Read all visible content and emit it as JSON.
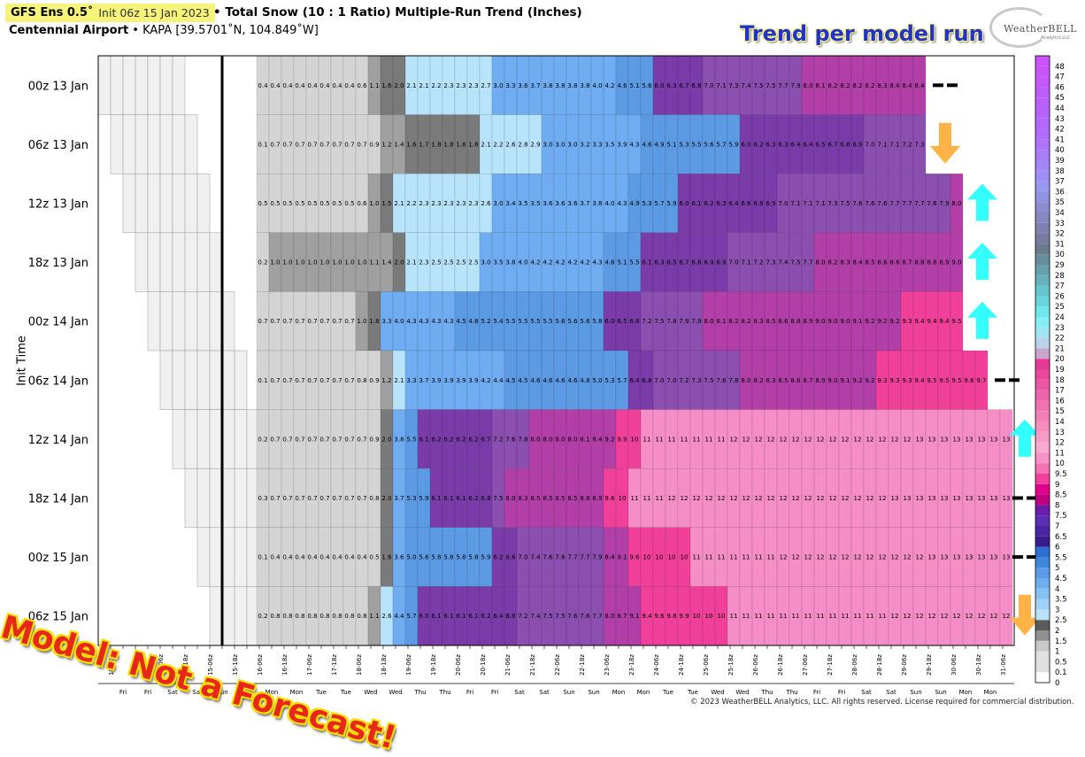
{
  "header": {
    "model": "GFS Ens 0.5˚",
    "init": "Init 06z 15 Jan 2023",
    "title": "• Total Snow (10 : 1 Ratio) Multiple-Run Trend (Inches)",
    "station": "Centennial Airport",
    "station_info": "• KAPA [39.5701˚N, 104.849˚W]",
    "trend_label": "Trend per model run",
    "logo_text": "WeatherBELL",
    "logo_sub": "Analytics LLC"
  },
  "overlay": {
    "stamp": "Model: Not a Forecast!",
    "copyright": "© 2023 WeatherBELL Analytics, LLC. All rights reserved. License required for commercial distribution."
  },
  "chart_data": {
    "type": "heatmap",
    "ylabel": "Init Time",
    "runs": [
      {
        "label": "00z 13 Jan",
        "lead_blank": 6,
        "trend": "flat",
        "values": [
          "0.4",
          "0.4",
          "0.4",
          "0.4",
          "0.4",
          "0.4",
          "0.4",
          "0.4",
          "0.6",
          "1.1",
          "1.6",
          "2.0",
          "2.1",
          "2.1",
          "2.2",
          "2.3",
          "2.3",
          "2.3",
          "2.7",
          "3.0",
          "3.3",
          "3.6",
          "3.7",
          "3.8",
          "3.8",
          "3.8",
          "3.8",
          "4.0",
          "4.2",
          "4.6",
          "5.1",
          "5.6",
          "6.0",
          "6.3",
          "6.7",
          "6.8",
          "7.0",
          "7.1",
          "7.3",
          "7.4",
          "7.5",
          "7.5",
          "7.7",
          "7.9",
          "8.0",
          "8.1",
          "8.2",
          "8.2",
          "8.2",
          "8.2",
          "8.3",
          "8.4",
          "8.4",
          "8.4"
        ]
      },
      {
        "label": "06z 13 Jan",
        "lead_blank": 6,
        "trend": "down",
        "values": [
          "0.1",
          "0.7",
          "0.7",
          "0.7",
          "0.7",
          "0.7",
          "0.7",
          "0.7",
          "0.7",
          "0.9",
          "1.2",
          "1.4",
          "1.6",
          "1.7",
          "1.8",
          "1.8",
          "1.8",
          "1.8",
          "2.1",
          "2.2",
          "2.6",
          "2.8",
          "2.9",
          "3.0",
          "3.0",
          "3.0",
          "3.2",
          "3.3",
          "3.5",
          "3.9",
          "4.3",
          "4.6",
          "4.9",
          "5.1",
          "5.3",
          "5.5",
          "5.6",
          "5.7",
          "5.9",
          "6.0",
          "6.2",
          "6.3",
          "6.3",
          "6.4",
          "6.4",
          "6.5",
          "6.7",
          "6.8",
          "6.9",
          "7.0",
          "7.1",
          "7.1",
          "7.2",
          "7.3"
        ]
      },
      {
        "label": "12z 13 Jan",
        "lead_blank": 7,
        "trend": "up",
        "values": [
          "0.5",
          "0.5",
          "0.5",
          "0.5",
          "0.5",
          "0.5",
          "0.5",
          "0.5",
          "0.6",
          "1.0",
          "1.5",
          "2.1",
          "2.2",
          "2.3",
          "2.3",
          "2.3",
          "2.3",
          "2.3",
          "2.6",
          "3.0",
          "3.4",
          "3.5",
          "3.5",
          "3.6",
          "3.6",
          "3.6",
          "3.7",
          "3.8",
          "4.0",
          "4.3",
          "4.9",
          "5.3",
          "5.7",
          "5.9",
          "6.0",
          "6.1",
          "6.2",
          "6.3",
          "6.4",
          "6.6",
          "6.8",
          "6.9",
          "7.0",
          "7.1",
          "7.1",
          "7.1",
          "7.3",
          "7.5",
          "7.6",
          "7.6",
          "7.6",
          "7.7",
          "7.7",
          "7.7",
          "7.8",
          "7.9",
          "8.0"
        ]
      },
      {
        "label": "18z 13 Jan",
        "lead_blank": 6,
        "trend": "up",
        "values": [
          "0.2",
          "1.0",
          "1.0",
          "1.0",
          "1.0",
          "1.0",
          "1.0",
          "1.0",
          "1.0",
          "1.1",
          "1.4",
          "2.0",
          "2.1",
          "2.3",
          "2.5",
          "2.5",
          "2.5",
          "2.5",
          "3.0",
          "3.5",
          "3.8",
          "4.0",
          "4.2",
          "4.2",
          "4.2",
          "4.2",
          "4.2",
          "4.3",
          "4.6",
          "5.1",
          "5.5",
          "6.1",
          "6.3",
          "6.5",
          "6.7",
          "6.8",
          "6.9",
          "6.9",
          "7.0",
          "7.1",
          "7.2",
          "7.3",
          "7.4",
          "7.5",
          "7.7",
          "8.0",
          "8.2",
          "8.3",
          "8.4",
          "8.5",
          "8.6",
          "8.6",
          "8.7",
          "8.8",
          "8.8",
          "8.9",
          "9.0"
        ]
      },
      {
        "label": "00z 14 Jan",
        "lead_blank": 6,
        "trend": "up",
        "values": [
          "0.7",
          "0.7",
          "0.7",
          "0.7",
          "0.7",
          "0.7",
          "0.7",
          "0.7",
          "1.0",
          "1.8",
          "3.3",
          "4.0",
          "4.3",
          "4.3",
          "4.3",
          "4.3",
          "4.5",
          "4.8",
          "5.2",
          "5.4",
          "5.5",
          "5.5",
          "5.5",
          "5.5",
          "5.6",
          "5.6",
          "5.6",
          "5.8",
          "6.0",
          "6.5",
          "6.8",
          "7.2",
          "7.5",
          "7.8",
          "7.9",
          "7.9",
          "8.0",
          "8.1",
          "8.2",
          "8.2",
          "8.3",
          "8.5",
          "8.6",
          "8.8",
          "8.9",
          "9.0",
          "9.0",
          "9.0",
          "9.1",
          "9.2",
          "9.2",
          "9.2",
          "9.3",
          "9.4",
          "9.4",
          "9.4",
          "9.5"
        ]
      },
      {
        "label": "06z 14 Jan",
        "lead_blank": 6,
        "trend": "flat",
        "values": [
          "0.1",
          "0.7",
          "0.7",
          "0.7",
          "0.7",
          "0.7",
          "0.7",
          "0.7",
          "0.8",
          "0.9",
          "1.2",
          "2.1",
          "3.3",
          "3.7",
          "3.9",
          "3.9",
          "3.9",
          "3.9",
          "4.2",
          "4.4",
          "4.5",
          "4.5",
          "4.6",
          "4.6",
          "4.6",
          "4.6",
          "4.8",
          "5.0",
          "5.3",
          "5.7",
          "6.4",
          "6.8",
          "7.0",
          "7.0",
          "7.2",
          "7.3",
          "7.5",
          "7.6",
          "7.8",
          "8.0",
          "8.2",
          "8.3",
          "8.5",
          "8.6",
          "8.7",
          "8.9",
          "9.0",
          "9.1",
          "9.2",
          "9.2",
          "9.3",
          "9.3",
          "9.3",
          "9.4",
          "9.5",
          "9.5",
          "9.5",
          "9.6",
          "9.7"
        ]
      },
      {
        "label": "12z 14 Jan",
        "lead_blank": 6,
        "trend": "up",
        "values": [
          "0.2",
          "0.7",
          "0.7",
          "0.7",
          "0.7",
          "0.7",
          "0.7",
          "0.7",
          "0.7",
          "0.9",
          "2.0",
          "3.8",
          "5.5",
          "6.1",
          "6.2",
          "6.2",
          "6.2",
          "6.2",
          "6.7",
          "7.2",
          "7.6",
          "7.8",
          "8.0",
          "8.0",
          "8.0",
          "8.0",
          "8.1",
          "8.4",
          "9.2",
          "9.9",
          "10",
          "11",
          "11",
          "11",
          "11",
          "11",
          "11",
          "11",
          "12",
          "12",
          "12",
          "12",
          "12",
          "12",
          "12",
          "12",
          "12",
          "12",
          "12",
          "12",
          "12",
          "12",
          "12",
          "13",
          "13",
          "13",
          "13",
          "13",
          "13",
          "13",
          "13"
        ]
      },
      {
        "label": "18z 14 Jan",
        "lead_blank": 6,
        "trend": "flat",
        "values": [
          "0.3",
          "0.7",
          "0.7",
          "0.7",
          "0.7",
          "0.7",
          "0.7",
          "0.7",
          "0.7",
          "0.8",
          "2.0",
          "3.7",
          "5.3",
          "5.9",
          "6.1",
          "6.1",
          "6.1",
          "6.2",
          "6.8",
          "7.5",
          "8.0",
          "8.3",
          "8.5",
          "8.5",
          "8.5",
          "8.5",
          "8.8",
          "8.9",
          "9.6",
          "10",
          "11",
          "11",
          "11",
          "12",
          "12",
          "12",
          "12",
          "12",
          "12",
          "12",
          "12",
          "12",
          "12",
          "12",
          "12",
          "12",
          "12",
          "12",
          "12",
          "12",
          "12",
          "13",
          "13",
          "13",
          "13",
          "13",
          "13",
          "13",
          "13",
          "13",
          "13"
        ]
      },
      {
        "label": "00z 15 Jan",
        "lead_blank": 6,
        "trend": "flat",
        "values": [
          "0.1",
          "0.4",
          "0.4",
          "0.4",
          "0.4",
          "0.4",
          "0.4",
          "0.4",
          "0.4",
          "0.5",
          "1.6",
          "3.6",
          "5.0",
          "5.6",
          "5.8",
          "5.8",
          "5.8",
          "5.8",
          "5.9",
          "6.2",
          "6.6",
          "7.0",
          "7.4",
          "7.6",
          "7.6",
          "7.7",
          "7.7",
          "7.9",
          "8.4",
          "9.1",
          "9.6",
          "10",
          "10",
          "10",
          "10",
          "11",
          "11",
          "11",
          "11",
          "11",
          "11",
          "11",
          "12",
          "12",
          "12",
          "12",
          "12",
          "12",
          "12",
          "12",
          "12",
          "12",
          "12",
          "12",
          "13",
          "13",
          "13",
          "13",
          "13",
          "13",
          "13"
        ]
      },
      {
        "label": "06z 15 Jan",
        "lead_blank": 6,
        "trend": "down",
        "values": [
          "0.2",
          "0.8",
          "0.8",
          "0.8",
          "0.8",
          "0.8",
          "0.8",
          "0.8",
          "0.8",
          "1.1",
          "2.6",
          "4.4",
          "5.7",
          "6.0",
          "6.1",
          "6.1",
          "6.1",
          "6.1",
          "6.2",
          "6.4",
          "6.8",
          "7.2",
          "7.4",
          "7.5",
          "7.5",
          "7.6",
          "7.6",
          "7.7",
          "8.0",
          "8.7",
          "9.1",
          "9.4",
          "9.6",
          "9.8",
          "9.9",
          "10",
          "10",
          "10",
          "11",
          "11",
          "11",
          "11",
          "11",
          "11",
          "11",
          "11",
          "11",
          "11",
          "11",
          "11",
          "11",
          "12",
          "12",
          "12",
          "12",
          "12",
          "12",
          "12",
          "12",
          "12",
          "12",
          "12",
          "12"
        ]
      }
    ],
    "x_ticks": [
      "13-06z",
      "13-12z",
      "13-18z",
      "14-00z",
      "14-06z",
      "14-12z",
      "14-18z",
      "15-00z",
      "15-06z",
      "15-12z",
      "15-18z",
      "16-00z",
      "16-06z",
      "16-12z",
      "16-18z",
      "17-00z",
      "17-06z",
      "17-12z",
      "17-18z",
      "18-00z",
      "18-06z",
      "18-12z",
      "18-18z",
      "19-00z",
      "19-06z",
      "19-12z",
      "19-18z",
      "20-00z",
      "20-06z",
      "20-12z",
      "20-18z",
      "21-00z",
      "21-06z",
      "21-12z",
      "21-18z",
      "22-00z",
      "22-06z",
      "22-12z",
      "22-18z",
      "23-00z",
      "23-06z",
      "23-12z",
      "23-18z",
      "24-00z",
      "24-06z",
      "24-12z",
      "24-18z",
      "25-00z",
      "25-06z",
      "25-12z",
      "25-18z",
      "26-00z",
      "26-06z",
      "26-12z",
      "26-18z",
      "27-00z",
      "27-06z",
      "27-12z",
      "27-18z",
      "28-00z",
      "28-06z",
      "28-12z",
      "28-18z",
      "29-00z",
      "29-06z",
      "29-12z",
      "29-18z",
      "30-00z",
      "30-06z",
      "30-12z",
      "30-18z",
      "31-00z",
      "31-06z"
    ],
    "x_days": [
      "Fri",
      "Fri",
      "Sat",
      "Sat",
      "Sun",
      "Sun",
      "Mon",
      "Mon",
      "Tue",
      "Tue",
      "Wed",
      "Wed",
      "Thu",
      "Thu",
      "Fri",
      "Fri",
      "Sat",
      "Sat",
      "Sun",
      "Sun",
      "Mon",
      "Mon",
      "Tue",
      "Tue",
      "Wed",
      "Wed",
      "Thu",
      "Thu",
      "Fri",
      "Fri",
      "Sat",
      "Sat",
      "Sun",
      "Sun",
      "Mon",
      "Mon",
      "Tue"
    ],
    "colorbar_labels": [
      "0",
      "0.1",
      "0.5",
      "1",
      "1.5",
      "2",
      "2.5",
      "3",
      "3.5",
      "4",
      "4.5",
      "5",
      "5.5",
      "6",
      "6.5",
      "7",
      "7.5",
      "8",
      "8.5",
      "9",
      "9.5",
      "10",
      "11",
      "12",
      "13",
      "14",
      "15",
      "16",
      "17",
      "18",
      "19",
      "20",
      "21",
      "22",
      "23",
      "24",
      "25",
      "26",
      "27",
      "28",
      "29",
      "30",
      "31",
      "32",
      "33",
      "34",
      "35",
      "36",
      "37",
      "38",
      "39",
      "40",
      "41",
      "42",
      "43",
      "44",
      "45",
      "46",
      "47",
      "48"
    ],
    "colors": {
      "light_gray": "#d4d4d4",
      "mid_gray": "#a0a0a0",
      "dark_gray": "#7a7a7a",
      "light_blue": "#b8e4fb",
      "blue": "#70acf1",
      "blue_mid": "#5c9ae3",
      "purple": "#8b4fb0",
      "dark_purple": "#7a3ca8",
      "magenta": "#b23fa8",
      "hot_pink": "#f0409a",
      "pink": "#f58dc6",
      "arrow_up": "#33ffff",
      "arrow_down": "#ffb347"
    }
  }
}
